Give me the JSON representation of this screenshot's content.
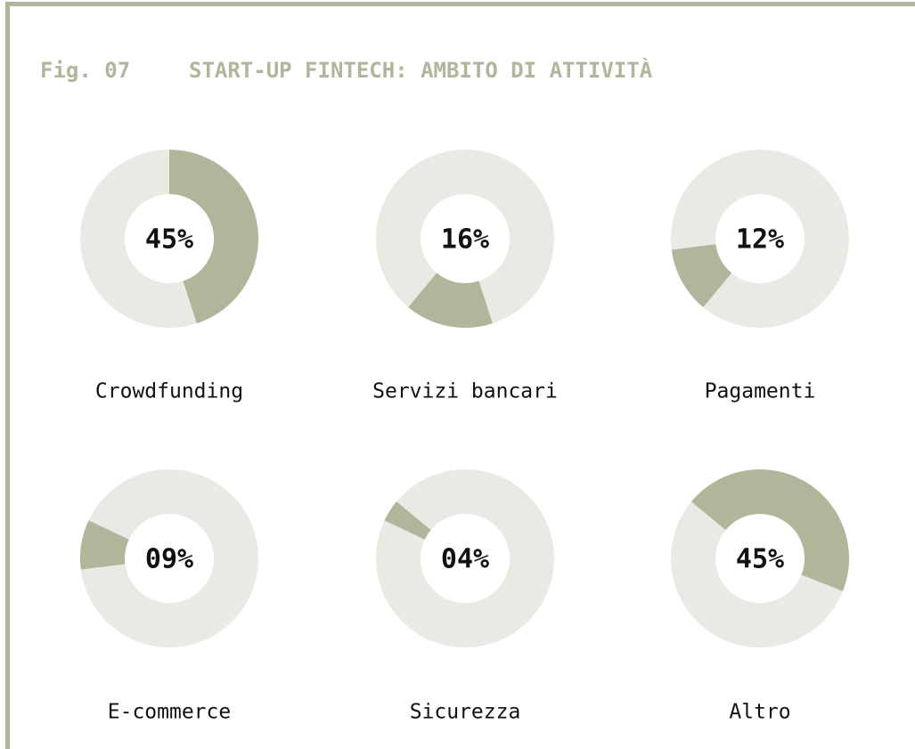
{
  "chart_data": {
    "type": "donut",
    "figure": "Fig. 07",
    "title": "START-UP FINTECH: AMBITO DI ATTIVITÀ",
    "categories": [
      "Crowdfunding",
      "Servizi bancari",
      "Pagamenti",
      "E-commerce",
      "Sicurezza",
      "Altro"
    ],
    "values": [
      45,
      16,
      12,
      9,
      4,
      45
    ],
    "value_labels": [
      "45%",
      "16%",
      "12%",
      "09%",
      "04%",
      "45%"
    ],
    "color": "#b3b59a",
    "track_color": "#ebe9e3"
  }
}
